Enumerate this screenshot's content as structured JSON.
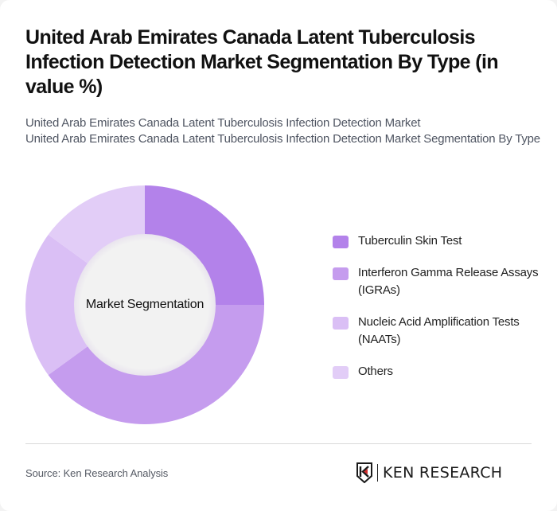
{
  "header": {
    "title": "United Arab Emirates Canada Latent Tuberculosis Infection Detection Market Segmentation By Type (in value %)",
    "subtitle_line1": "United Arab Emirates Canada Latent Tuberculosis Infection Detection Market",
    "subtitle_line2": "United Arab Emirates Canada Latent Tuberculosis Infection Detection Market Segmentation By Type"
  },
  "chart": {
    "center_label": "Market Segmentation",
    "inner_color": "#f2f2f2"
  },
  "legend": {
    "items": [
      {
        "label": "Tuberculin Skin Test",
        "color": "#b382ea"
      },
      {
        "label": "Interferon Gamma Release Assays (IGRAs)",
        "color": "#c59cee"
      },
      {
        "label": "Nucleic Acid Amplification Tests (NAATs)",
        "color": "#dabff5"
      },
      {
        "label": "Others",
        "color": "#e2cdf7"
      }
    ]
  },
  "footer": {
    "source": "Source: Ken Research Analysis",
    "logo_text": "KEN RESEARCH"
  },
  "chart_data": {
    "type": "pie",
    "variant": "donut",
    "title": "United Arab Emirates Canada Latent Tuberculosis Infection Detection Market Segmentation By Type (in value %)",
    "center_label": "Market Segmentation",
    "categories": [
      "Tuberculin Skin Test",
      "Interferon Gamma Release Assays (IGRAs)",
      "Nucleic Acid Amplification Tests (NAATs)",
      "Others"
    ],
    "values": [
      25,
      40,
      20,
      15
    ],
    "colors": [
      "#b382ea",
      "#c59cee",
      "#dabff5",
      "#e2cdf7"
    ],
    "unit": "%",
    "start_angle_deg": 0,
    "direction": "clockwise",
    "legend_position": "right",
    "data_labels": false
  }
}
